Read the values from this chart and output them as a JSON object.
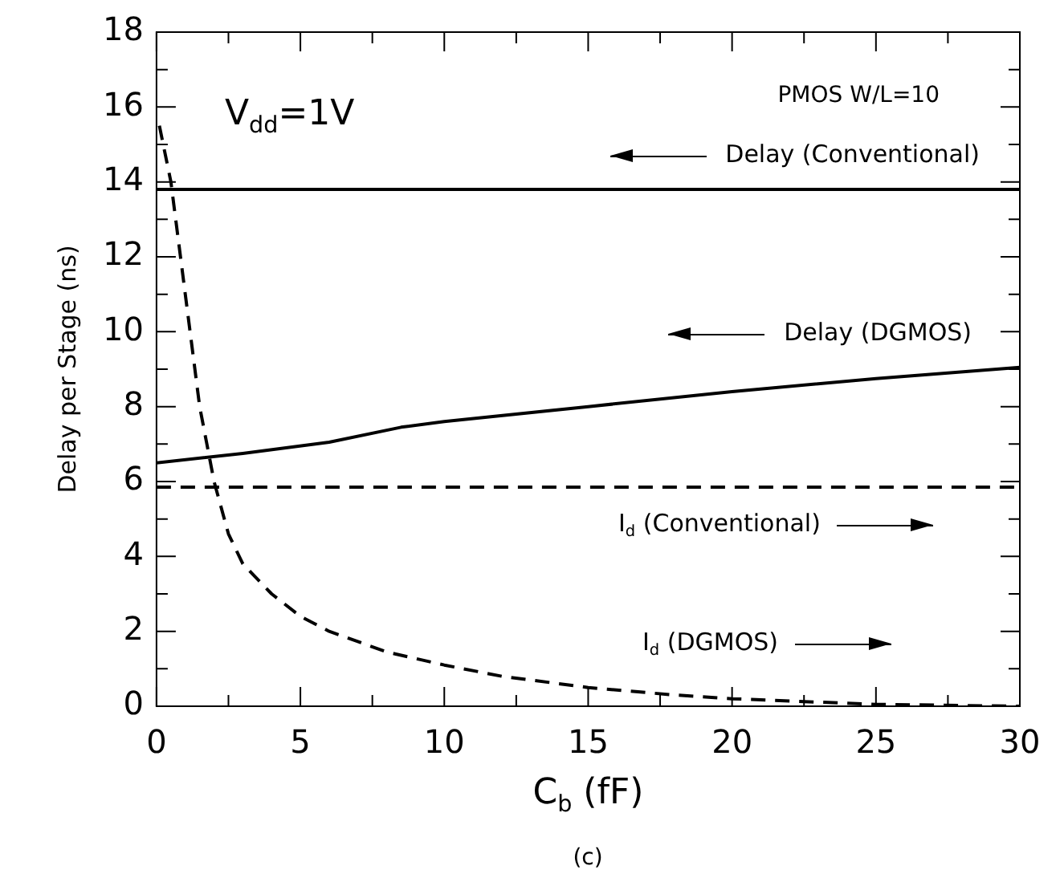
{
  "chart_data": {
    "type": "line",
    "xlabel": "C$_{b}$ (fF)",
    "ylabel": "Delay per Stage (ns)",
    "xlim": [
      0,
      30
    ],
    "ylim": [
      0,
      18
    ],
    "xticks": [
      0,
      {
        "value": 2.5,
        "label": null
      },
      5,
      {
        "value": 7.5,
        "label": null
      },
      10,
      {
        "value": 12.5,
        "label": null
      },
      15,
      {
        "value": 17.5,
        "label": null
      },
      20,
      {
        "value": 22.5,
        "label": null
      },
      25,
      {
        "value": 27.5,
        "label": null
      },
      30
    ],
    "yticks": [
      0,
      {
        "value": 1,
        "label": null
      },
      2,
      {
        "value": 3,
        "label": null
      },
      4,
      {
        "value": 5,
        "label": null
      },
      6,
      {
        "value": 7,
        "label": null
      },
      8,
      {
        "value": 9,
        "label": null
      },
      10,
      {
        "value": 11,
        "label": null
      },
      12,
      {
        "value": 13,
        "label": null
      },
      14,
      {
        "value": 15,
        "label": null
      },
      16,
      {
        "value": 17,
        "label": null
      },
      18
    ],
    "marker": "none",
    "legend": "right",
    "series": [
      {
        "name": "Delay (Conventional)",
        "color": "#000000",
        "line_style": "solid",
        "x": [
          0,
          30
        ],
        "values": [
          13.8,
          13.8
        ]
      },
      {
        "name": "Delay (DGMOS)",
        "color": "#000000",
        "line_style": "solid",
        "x": [
          0,
          3,
          6,
          8.5,
          10,
          15,
          20,
          25,
          30
        ],
        "values": [
          6.5,
          6.75,
          7.05,
          7.45,
          7.6,
          8.0,
          8.4,
          8.75,
          9.05
        ]
      },
      {
        "name": "I$_{d}$ (Conventional)",
        "color": "#000000",
        "line_style": "dashed",
        "x": [
          0,
          30
        ],
        "values": [
          5.85,
          5.85
        ]
      },
      {
        "name": "I$_{d}$ (DGMOS)",
        "color": "#000000",
        "line_style": "dashed",
        "x": [
          0.1,
          0.5,
          1,
          1.5,
          2,
          2.5,
          3,
          4,
          5,
          6,
          8,
          10,
          12,
          15,
          18,
          20,
          25,
          30
        ],
        "values": [
          15.5,
          14,
          11,
          8,
          6,
          4.6,
          3.8,
          3.0,
          2.4,
          2.0,
          1.45,
          1.1,
          0.8,
          0.5,
          0.3,
          0.2,
          0.05,
          0
        ]
      }
    ],
    "annotations": [
      "V$_{dd}$=1V",
      "PMOS W/L=10",
      "(c)"
    ]
  }
}
